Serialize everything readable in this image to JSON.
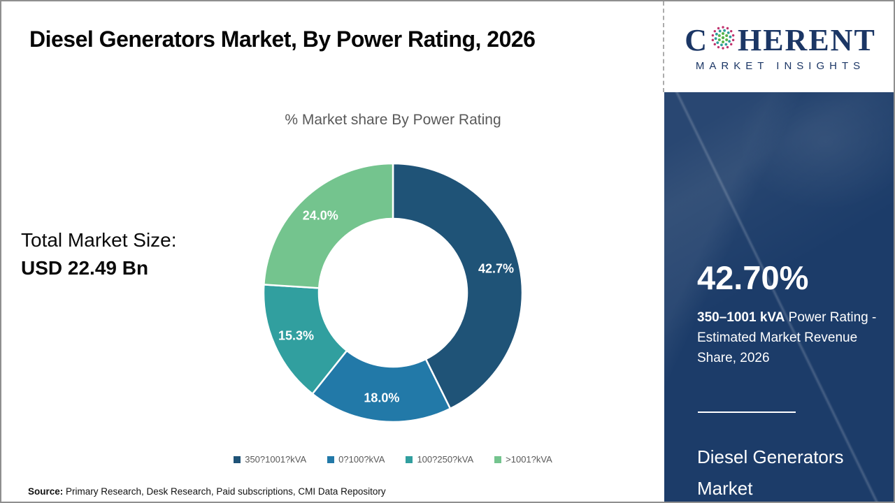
{
  "header": {
    "title": "Diesel Generators Market, By Power Rating, 2026",
    "logo": {
      "word_start": "C",
      "word_end": "HERENT",
      "subtitle": "MARKET INSIGHTS",
      "navy": "#1b3665",
      "globe_colors": {
        "outer": "#c0326d",
        "mid": "#2e9d9c",
        "inner": "#58b54b"
      }
    }
  },
  "left_stat": {
    "label": "Total Market Size:",
    "value": "USD 22.49 Bn"
  },
  "chart_data": {
    "type": "pie",
    "donut": true,
    "title": "% Market share By Power Rating",
    "categories": [
      "350?1001?kVA",
      "0?100?kVA",
      "100?250?kVA",
      ">1001?kVA"
    ],
    "values": [
      42.7,
      18.0,
      15.3,
      24.0
    ],
    "data_labels": [
      "42.7%",
      "18.0%",
      "15.3%",
      "24.0%"
    ],
    "colors": [
      "#1f5377",
      "#2279a8",
      "#319f9f",
      "#74c48e"
    ],
    "start_angle_deg": 0,
    "direction": "clockwise",
    "legend_position": "bottom",
    "outer_radius": 185,
    "inner_radius": 106
  },
  "side_panel": {
    "headline": "42.70%",
    "sub_bold": "350–1001 kVA",
    "sub_rest": " Power Rating - Estimated Market Revenue Share, 2026",
    "market_name_line1": "Diesel Generators",
    "market_name_line2": "Market",
    "bg_color": "#1c3c69"
  },
  "footer": {
    "source_label": "Source:",
    "source_text": " Primary Research, Desk Research, Paid subscriptions, CMI Data Repository"
  }
}
